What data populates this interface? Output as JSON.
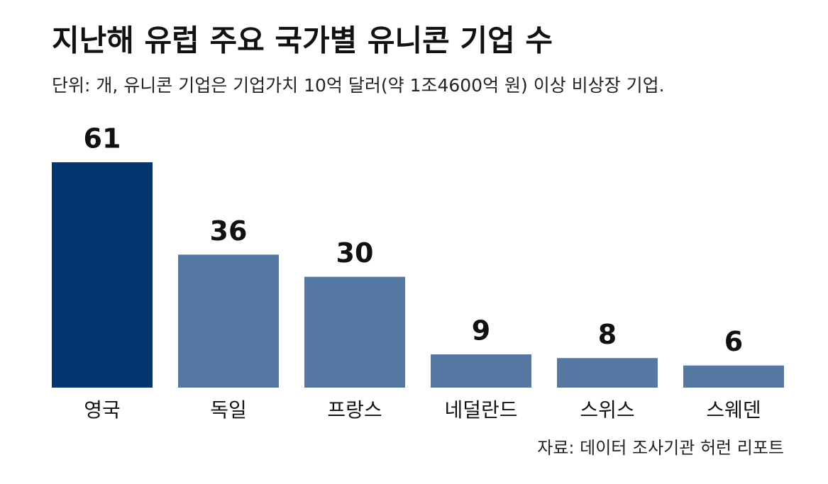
{
  "chart_data": {
    "type": "bar",
    "title": "지난해 유럽 주요 국가별 유니콘 기업 수",
    "subtitle": "단위: 개, 유니콘 기업은 기업가치 10억 달러(약 1조4600억 원) 이상 비상장 기업.",
    "source": "자료: 데이터 조사기관 허런 리포트",
    "categories": [
      "영국",
      "독일",
      "프랑스",
      "네덜란드",
      "스위스",
      "스웨덴"
    ],
    "values": [
      61,
      36,
      30,
      9,
      8,
      6
    ],
    "colors": [
      "#04356f",
      "#5578a2",
      "#5578a2",
      "#5578a2",
      "#5578a2",
      "#5578a2"
    ]
  }
}
